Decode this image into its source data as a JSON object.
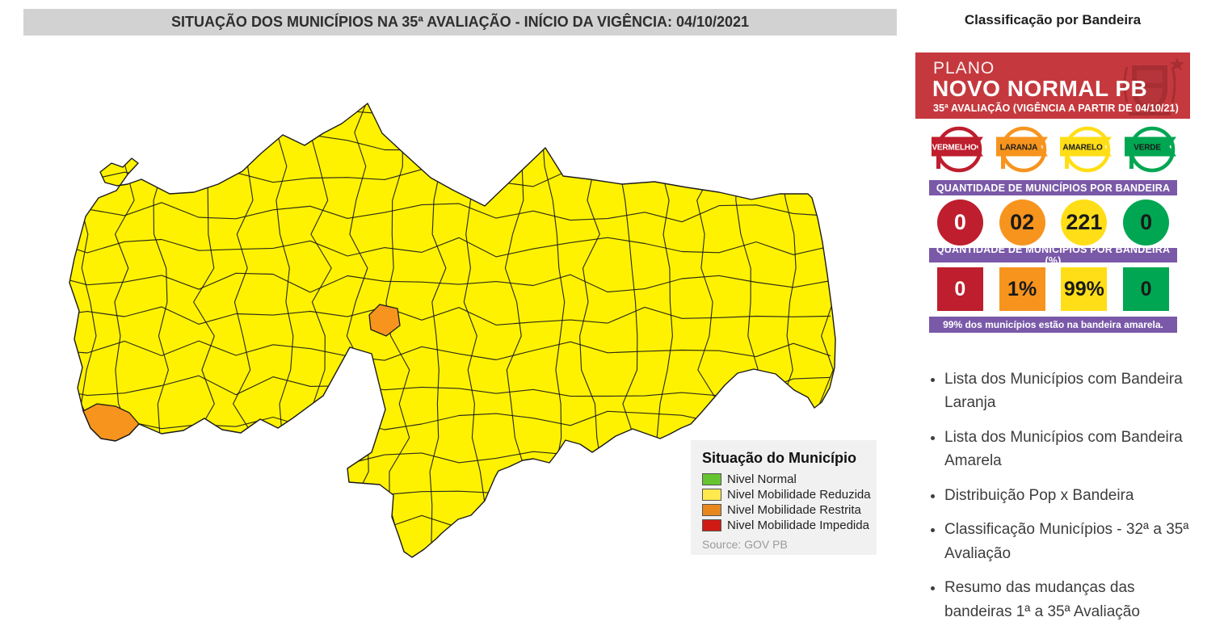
{
  "page": {
    "title": "SITUAÇÃO DOS MUNICÍPIOS NA 35ª AVALIAÇÃO - INÍCIO DA VIGÊNCIA: 04/10/2021"
  },
  "map": {
    "colors": {
      "municipality_fill": "#fff200",
      "restricted_fill": "#f7941e",
      "border": "#1b1b1b"
    },
    "legend": {
      "title": "Situação do Município",
      "items": [
        {
          "label": "Nivel Normal",
          "color": "#66c430"
        },
        {
          "label": "Nivel Mobilidade Reduzida",
          "color": "#ffe94f"
        },
        {
          "label": "Nivel Mobilidade Restrita",
          "color": "#e8871e"
        },
        {
          "label": "Nivel Mobilidade Impedida",
          "color": "#d01b15"
        }
      ],
      "source": "Source: GOV PB"
    }
  },
  "sidebar": {
    "heading": "Classificação por Bandeira",
    "banner": {
      "line1": "PLANO",
      "line2": "NOVO NORMAL PB",
      "line3": "35ª AVALIAÇÃO (VIGÊNCIA A PARTIR DE 04/10/21)",
      "background": "#c5393e"
    },
    "section1_label": "QUANTIDADE DE MUNICÍPIOS POR BANDEIRA",
    "section2_label": "QUANTIDADE DE MUNICÍPIOS POR BANDEIRA (%)",
    "footer_note": "99% dos municípios estão na bandeira amarela.",
    "accent_purple": "#7a59a8",
    "flags": [
      {
        "name": "VERMELHO",
        "color": "#be1e2d",
        "text_color": "#ffffff",
        "count": "0",
        "percent": "0"
      },
      {
        "name": "LARANJA",
        "color": "#f7941e",
        "text_color": "#1a1a1a",
        "count": "02",
        "percent": "1%"
      },
      {
        "name": "AMARELO",
        "color": "#ffde17",
        "text_color": "#1a1a1a",
        "count": "221",
        "percent": "99%"
      },
      {
        "name": "VERDE",
        "color": "#00a651",
        "text_color": "#1a1a1a",
        "count": "0",
        "percent": "0"
      }
    ],
    "links": [
      "Lista dos Municípios com Bandeira Laranja",
      "Lista dos Municípios com Bandeira Amarela",
      "Distribuição Pop x Bandeira",
      "Classificação Municípios - 32ª a 35ª Avaliação",
      "Resumo das mudanças das bandeiras 1ª a 35ª Avaliação"
    ]
  }
}
